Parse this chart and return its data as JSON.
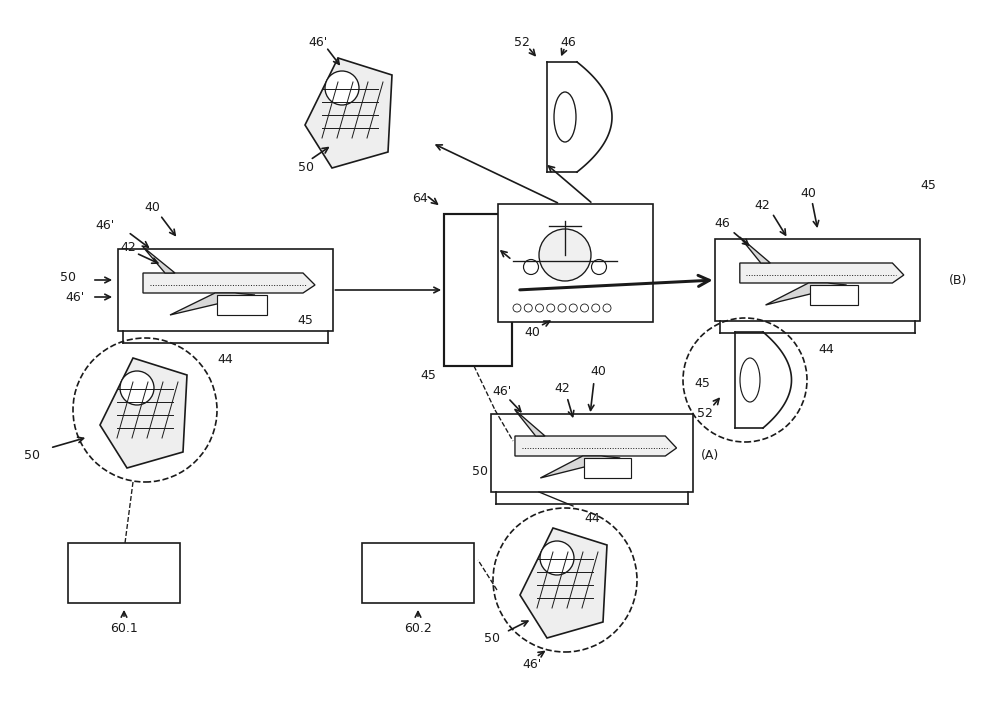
{
  "bg_color": "#ffffff",
  "line_color": "#1a1a1a",
  "fig_width": 10.0,
  "fig_height": 7.15
}
